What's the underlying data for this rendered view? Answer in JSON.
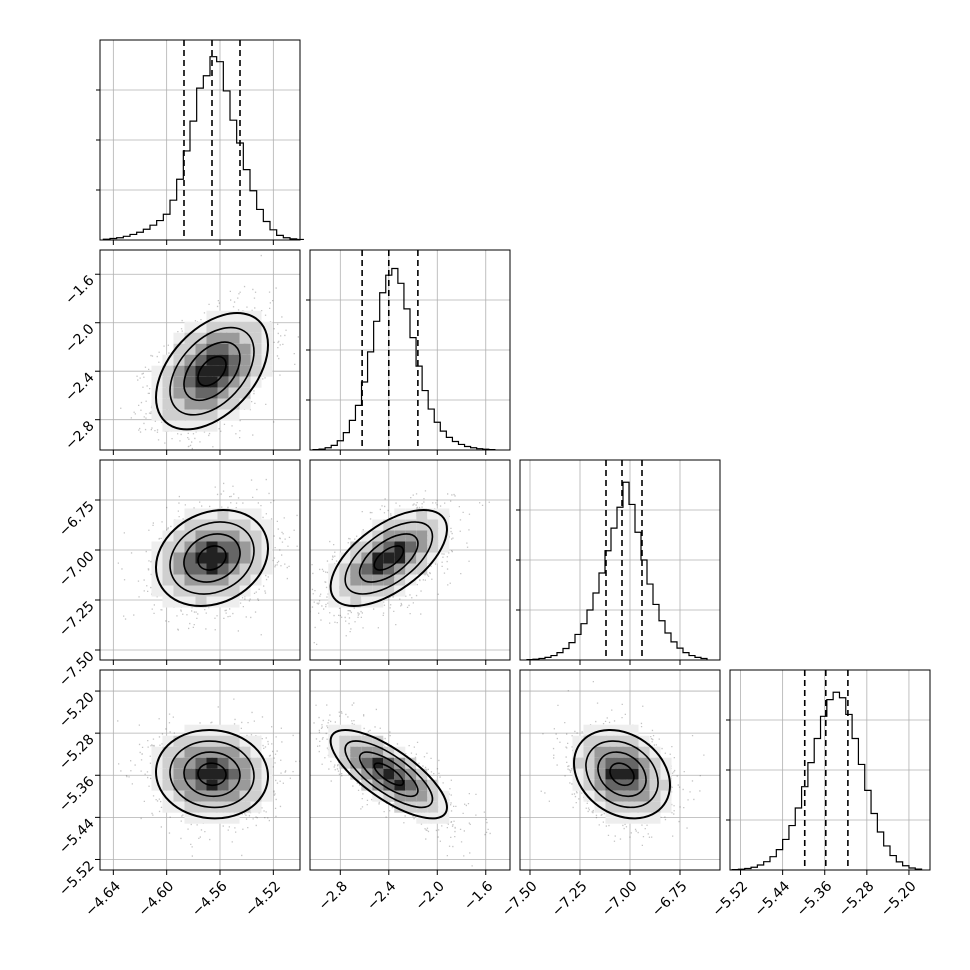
{
  "chart_data": {
    "type": "corner",
    "title": "",
    "parameters": [
      {
        "label": "",
        "range": [
          -4.65,
          -4.5
        ],
        "ticks": [
          -4.64,
          -4.6,
          -4.56,
          -4.52
        ],
        "tick_labels": [
          "−4.64",
          "−4.60",
          "−4.56",
          "−4.52"
        ],
        "quantiles": [
          -4.587,
          -4.566,
          -4.545
        ],
        "hist_x": [
          -4.645,
          -4.64,
          -4.635,
          -4.63,
          -4.625,
          -4.62,
          -4.615,
          -4.61,
          -4.605,
          -4.6,
          -4.595,
          -4.59,
          -4.585,
          -4.58,
          -4.575,
          -4.57,
          -4.565,
          -4.56,
          -4.555,
          -4.55,
          -4.545,
          -4.54,
          -4.535,
          -4.53,
          -4.525,
          -4.52,
          -4.515,
          -4.51,
          -4.505,
          -4.5
        ],
        "hist_y": [
          0.004,
          0.008,
          0.012,
          0.02,
          0.03,
          0.042,
          0.058,
          0.08,
          0.105,
          0.139,
          0.215,
          0.328,
          0.481,
          0.642,
          0.82,
          0.887,
          0.99,
          0.963,
          0.805,
          0.647,
          0.524,
          0.38,
          0.266,
          0.165,
          0.1,
          0.055,
          0.025,
          0.012,
          0.006,
          0.003
        ]
      },
      {
        "label": "",
        "range": [
          -3.05,
          -1.4
        ],
        "ticks": [
          -2.8,
          -2.4,
          -2.0,
          -1.6
        ],
        "tick_labels": [
          "−2.8",
          "−2.4",
          "−2.0",
          "−1.6"
        ],
        "quantiles": [
          -2.62,
          -2.4,
          -2.16
        ],
        "hist_x": [
          -3.0,
          -2.95,
          -2.9,
          -2.85,
          -2.8,
          -2.75,
          -2.7,
          -2.65,
          -2.6,
          -2.55,
          -2.5,
          -2.45,
          -2.4,
          -2.35,
          -2.3,
          -2.25,
          -2.2,
          -2.15,
          -2.1,
          -2.05,
          -2.0,
          -1.95,
          -1.9,
          -1.85,
          -1.8,
          -1.75,
          -1.7,
          -1.65,
          -1.6,
          -1.55
        ],
        "hist_y": [
          0.002,
          0.005,
          0.012,
          0.025,
          0.05,
          0.094,
          0.16,
          0.241,
          0.367,
          0.53,
          0.695,
          0.849,
          0.944,
          0.98,
          0.9,
          0.762,
          0.607,
          0.453,
          0.321,
          0.221,
          0.15,
          0.102,
          0.068,
          0.046,
          0.03,
          0.019,
          0.012,
          0.007,
          0.004,
          0.002
        ]
      },
      {
        "label": "",
        "range": [
          -7.55,
          -6.55
        ],
        "ticks": [
          -7.5,
          -7.25,
          -7.0,
          -6.75
        ],
        "tick_labels": [
          "−7.50",
          "−7.25",
          "−7.00",
          "−6.75"
        ],
        "quantiles": [
          -7.12,
          -7.04,
          -6.94
        ],
        "hist_x": [
          -7.5,
          -7.47,
          -7.44,
          -7.41,
          -7.38,
          -7.35,
          -7.32,
          -7.29,
          -7.26,
          -7.23,
          -7.2,
          -7.17,
          -7.14,
          -7.11,
          -7.08,
          -7.05,
          -7.02,
          -6.99,
          -6.96,
          -6.93,
          -6.9,
          -6.87,
          -6.84,
          -6.81,
          -6.78,
          -6.75,
          -6.72,
          -6.69,
          -6.66,
          -6.63
        ],
        "hist_y": [
          0.002,
          0.004,
          0.008,
          0.014,
          0.024,
          0.04,
          0.062,
          0.094,
          0.138,
          0.196,
          0.27,
          0.362,
          0.47,
          0.59,
          0.712,
          0.825,
          0.96,
          0.84,
          0.69,
          0.54,
          0.41,
          0.3,
          0.212,
          0.146,
          0.098,
          0.064,
          0.04,
          0.024,
          0.014,
          0.008
        ]
      },
      {
        "label": "",
        "range": [
          -5.54,
          -5.16
        ],
        "ticks": [
          -5.52,
          -5.44,
          -5.36,
          -5.28,
          -5.2
        ],
        "tick_labels": [
          "−5.52",
          "−5.44",
          "−5.36",
          "−5.28",
          "−5.20"
        ],
        "quantiles": [
          -5.398,
          -5.358,
          -5.316
        ],
        "hist_x": [
          -5.53,
          -5.518,
          -5.506,
          -5.494,
          -5.482,
          -5.47,
          -5.458,
          -5.446,
          -5.434,
          -5.422,
          -5.41,
          -5.398,
          -5.386,
          -5.374,
          -5.362,
          -5.35,
          -5.338,
          -5.326,
          -5.314,
          -5.302,
          -5.29,
          -5.278,
          -5.266,
          -5.254,
          -5.242,
          -5.23,
          -5.218,
          -5.206,
          -5.194,
          -5.182
        ],
        "hist_y": [
          0.002,
          0.004,
          0.008,
          0.015,
          0.027,
          0.045,
          0.072,
          0.11,
          0.165,
          0.24,
          0.335,
          0.45,
          0.58,
          0.71,
          0.83,
          0.92,
          0.96,
          0.93,
          0.84,
          0.71,
          0.57,
          0.43,
          0.305,
          0.205,
          0.13,
          0.078,
          0.044,
          0.023,
          0.011,
          0.005
        ]
      }
    ],
    "pairs": [
      {
        "x": 0,
        "y": 1,
        "mean": [
          -4.566,
          -2.4
        ],
        "sd": [
          0.021,
          0.24
        ],
        "corr": 0.45
      },
      {
        "x": 0,
        "y": 2,
        "mean": [
          -4.566,
          -7.04
        ],
        "sd": [
          0.021,
          0.12
        ],
        "corr": 0.2
      },
      {
        "x": 1,
        "y": 2,
        "mean": [
          -2.4,
          -7.04
        ],
        "sd": [
          0.24,
          0.12
        ],
        "corr": 0.6
      },
      {
        "x": 0,
        "y": 3,
        "mean": [
          -4.566,
          -5.358
        ],
        "sd": [
          0.021,
          0.042
        ],
        "corr": -0.05
      },
      {
        "x": 1,
        "y": 3,
        "mean": [
          -2.4,
          -5.358
        ],
        "sd": [
          0.24,
          0.042
        ],
        "corr": -0.75
      },
      {
        "x": 2,
        "y": 3,
        "mean": [
          -7.04,
          -5.358
        ],
        "sd": [
          0.12,
          0.042
        ],
        "corr": -0.25
      }
    ],
    "grid": true,
    "colors": {
      "line": "#000000",
      "grid": "#b0b0b0",
      "points": "#555555"
    }
  }
}
